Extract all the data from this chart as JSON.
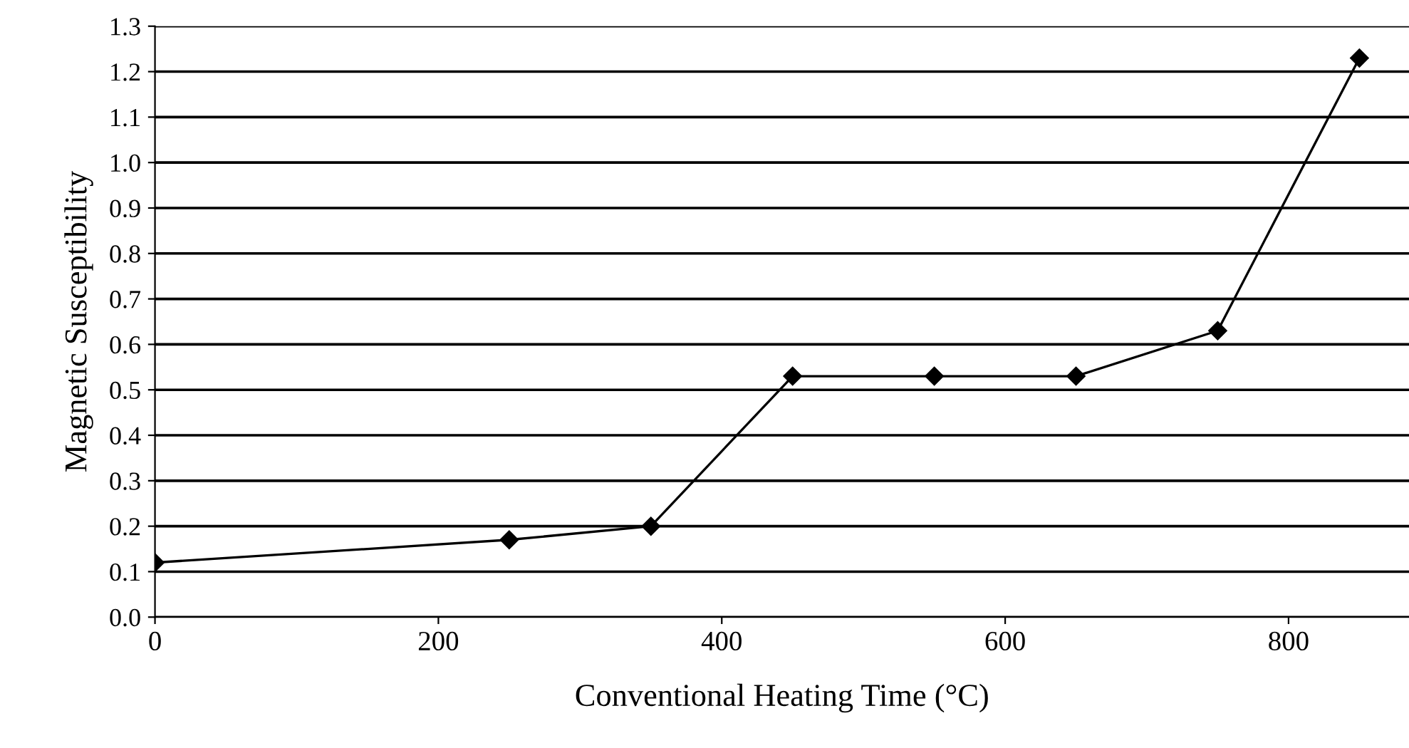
{
  "chart_data": {
    "type": "line",
    "xlabel": "Conventional Heating Time (°C)",
    "ylabel": "Magnetic Susceptibility",
    "x": [
      0,
      250,
      350,
      450,
      550,
      650,
      750,
      850
    ],
    "series": [
      {
        "color": "#000000",
        "values": [
          0.12,
          0.17,
          0.2,
          0.53,
          0.53,
          0.53,
          0.63,
          1.23
        ]
      }
    ],
    "xlim": [
      0,
      885
    ],
    "ylim": [
      0.0,
      1.3
    ],
    "xticks": [
      0,
      200,
      400,
      600,
      800
    ],
    "yticks": [
      {
        "value": 0,
        "label": "0.0"
      },
      0.1,
      0.2,
      0.3,
      0.4,
      0.5,
      0.6,
      0.7,
      0.8,
      0.9,
      {
        "value": 1,
        "label": "1.0"
      },
      1.1,
      1.2,
      1.3
    ],
    "grid": "y",
    "marker": "diamond",
    "line_style": "solid"
  }
}
